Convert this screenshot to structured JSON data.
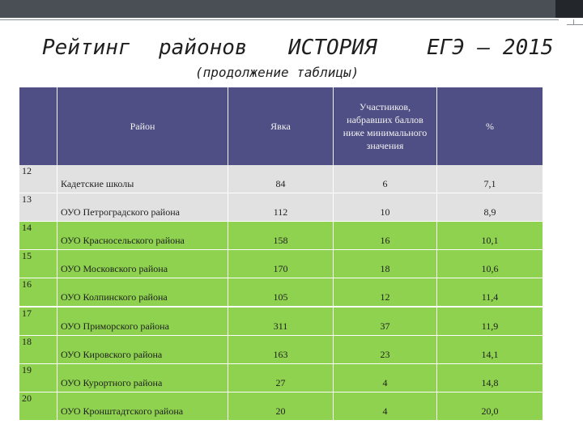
{
  "slide": {
    "title_parts": [
      "Рейтинг",
      "районов",
      "ИСТОРИЯ",
      "ЕГЭ – 2015"
    ],
    "subtitle": "(продолжение таблицы)"
  },
  "table": {
    "headers": {
      "district": "Район",
      "attendance": "Явка",
      "below_min": "Участников, набравших баллов ниже минимального значения",
      "percent": "%"
    },
    "rows": [
      {
        "n": "12",
        "district": "Кадетские школы",
        "attendance": "84",
        "below": "6",
        "percent": "7,1"
      },
      {
        "n": "13",
        "district": "ОУО Петроградского района",
        "attendance": "112",
        "below": "10",
        "percent": "8,9"
      },
      {
        "n": "14",
        "district": "ОУО Красносельского района",
        "attendance": "158",
        "below": "16",
        "percent": "10,1"
      },
      {
        "n": "15",
        "district": "ОУО Московского района",
        "attendance": "170",
        "below": "18",
        "percent": "10,6"
      },
      {
        "n": "16",
        "district": "ОУО Колпинского района",
        "attendance": "105",
        "below": "12",
        "percent": "11,4"
      },
      {
        "n": "17",
        "district": "ОУО Приморского района",
        "attendance": "311",
        "below": "37",
        "percent": "11,9"
      },
      {
        "n": "18",
        "district": "ОУО Кировского района",
        "attendance": "163",
        "below": "23",
        "percent": "14,1"
      },
      {
        "n": "19",
        "district": "ОУО Курортного района",
        "attendance": "27",
        "below": "4",
        "percent": "14,8"
      },
      {
        "n": "20",
        "district": "ОУО Кронштадтского района",
        "attendance": "20",
        "below": "4",
        "percent": "20,0"
      }
    ],
    "row_highlights": [
      "gray",
      "gray",
      "green",
      "green",
      "green",
      "green",
      "green",
      "green",
      "green"
    ]
  },
  "colors": {
    "header_bg": "#4f4f85",
    "gray_row": "#e1e1e1",
    "green_row": "#8ed24f",
    "top_bar": "#4a4f55"
  }
}
